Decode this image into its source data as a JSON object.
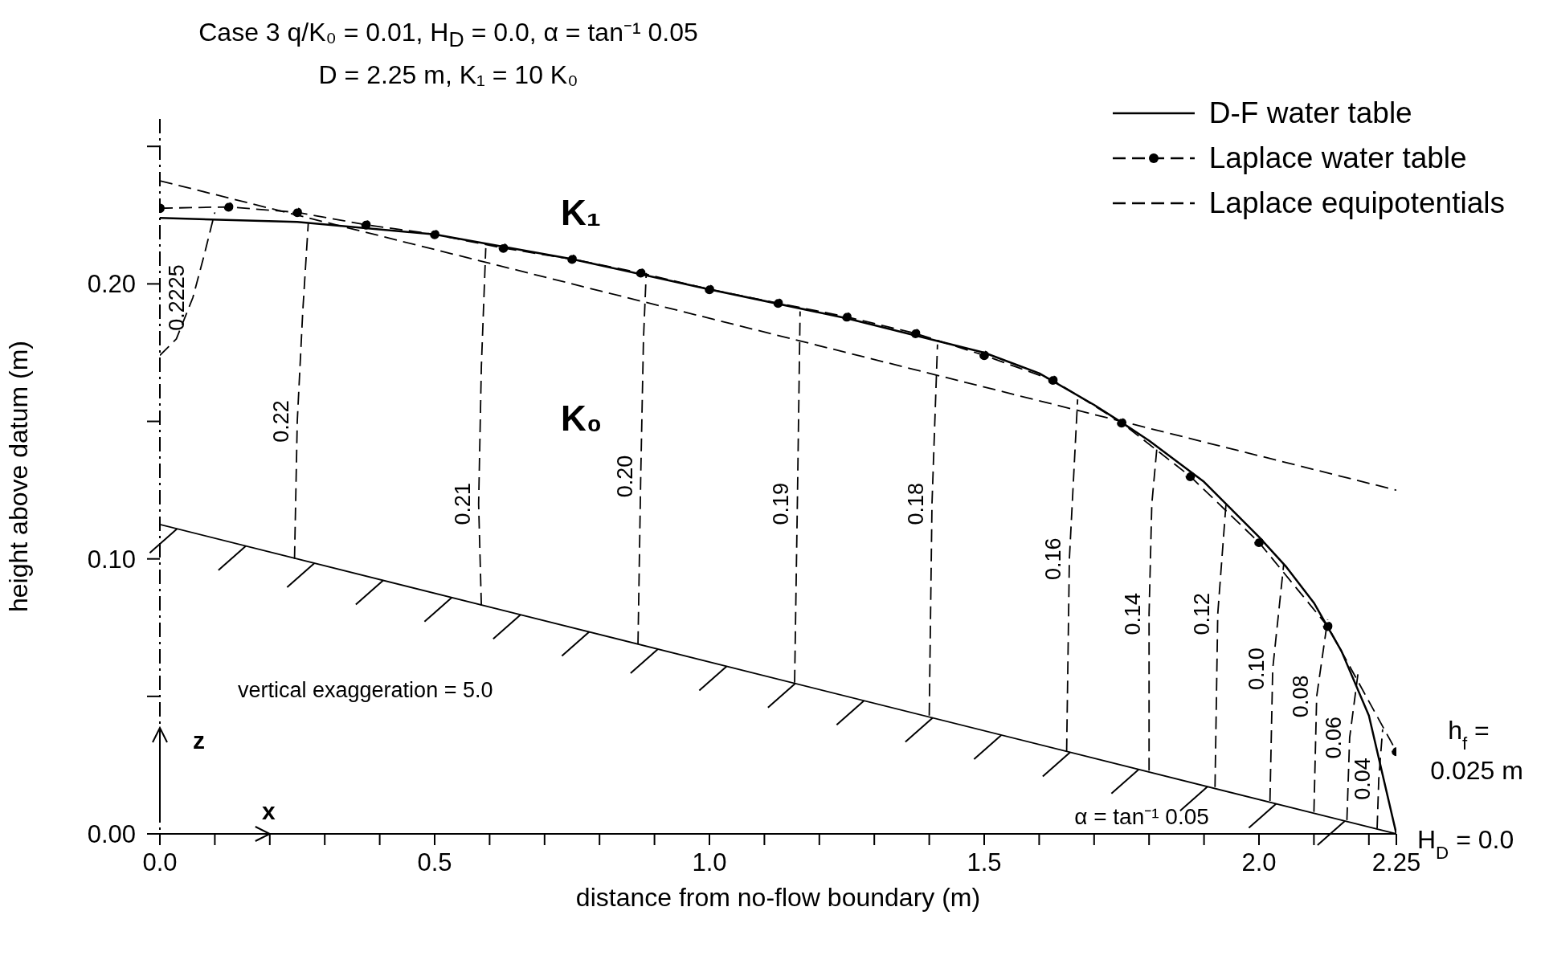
{
  "chart_data": {
    "type": "line",
    "title": "Case 3  q/K₀ = 0.01,   H$_{D}$ = 0.0,  α = tan⁻¹ 0.05",
    "subtitle": "D = 2.25 m, K₁ = 10 K₀",
    "xlabel": "distance from no-flow boundary (m)",
    "ylabel": "height above datum (m)",
    "xlim": [
      0,
      2.25
    ],
    "xticks": [
      {
        "value": 0,
        "label": "0.0"
      },
      {
        "value": 0.1,
        "label": null
      },
      {
        "value": 0.2,
        "label": null
      },
      {
        "value": 0.3,
        "label": null
      },
      {
        "value": 0.4,
        "label": null
      },
      0.5,
      {
        "value": 0.6,
        "label": null
      },
      {
        "value": 0.7,
        "label": null
      },
      {
        "value": 0.8,
        "label": null
      },
      {
        "value": 0.9,
        "label": null
      },
      {
        "value": 1,
        "label": "1.0"
      },
      {
        "value": 1.1,
        "label": null
      },
      {
        "value": 1.2,
        "label": null
      },
      {
        "value": 1.3,
        "label": null
      },
      {
        "value": 1.4,
        "label": null
      },
      1.5,
      {
        "value": 1.6,
        "label": null
      },
      {
        "value": 1.7,
        "label": null
      },
      {
        "value": 1.8,
        "label": null
      },
      {
        "value": 1.9,
        "label": null
      },
      {
        "value": 2,
        "label": "2.0"
      },
      {
        "value": 2.1,
        "label": null
      },
      {
        "value": 2.2,
        "label": null
      },
      2.25
    ],
    "ylim": [
      0,
      0.26
    ],
    "yticks": [
      {
        "value": 0,
        "label": "0.00"
      },
      {
        "value": 0.05,
        "label": null
      },
      {
        "value": 0.1,
        "label": "0.10"
      },
      {
        "value": 0.15,
        "label": null
      },
      {
        "value": 0.2,
        "label": "0.20"
      },
      {
        "value": 0.25,
        "label": null
      }
    ],
    "grid": false,
    "legend": "top right",
    "series": [
      {
        "name": "D-F water table",
        "color": "#000000",
        "line_style": "solid",
        "marker": "none",
        "x": [
          0,
          0.25,
          0.5,
          0.75,
          1.0,
          1.25,
          1.5,
          1.6,
          1.7,
          1.75,
          1.8,
          1.9,
          2.0,
          2.05,
          2.1,
          2.15,
          2.2,
          2.25
        ],
        "values": [
          0.224,
          0.2225,
          0.218,
          0.209,
          0.198,
          0.1875,
          0.175,
          0.1675,
          0.156,
          0.1496,
          0.143,
          0.128,
          0.108,
          0.097,
          0.084,
          0.0665,
          0.043,
          0
        ]
      },
      {
        "name": "Laplace water table",
        "color": "#000000",
        "line_style": "dashed",
        "marker": "circle",
        "x": [
          0,
          0.125,
          0.25,
          0.375,
          0.5,
          0.625,
          0.75,
          0.875,
          1.0,
          1.125,
          1.25,
          1.375,
          1.5,
          1.625,
          1.75,
          1.875,
          2.0,
          2.125,
          2.25
        ],
        "values": [
          0.2275,
          0.228,
          0.226,
          0.2215,
          0.218,
          0.213,
          0.209,
          0.204,
          0.198,
          0.193,
          0.188,
          0.182,
          0.174,
          0.165,
          0.1495,
          0.13,
          0.106,
          0.0755,
          0.03
        ]
      },
      {
        "name": "Laplace equipotentials",
        "color": "#000000",
        "line_style": "dashed",
        "marker": "none",
        "x": [
          0,
          0.03,
          0.06,
          0.08,
          0.1
        ],
        "values": [
          0.174,
          0.18,
          0.195,
          0.21,
          0.226
        ]
      },
      {
        "color": "#000000",
        "line_style": "dashed",
        "marker": "none",
        "x": [
          0.245,
          0.25,
          0.26,
          0.27
        ],
        "values": [
          0.1,
          0.15,
          0.19,
          0.222
        ]
      },
      {
        "color": "#000000",
        "line_style": "dashed",
        "marker": "none",
        "x": [
          0.585,
          0.58,
          0.585,
          0.593
        ],
        "values": [
          0.083,
          0.12,
          0.17,
          0.213
        ]
      },
      {
        "color": "#000000",
        "line_style": "dashed",
        "marker": "none",
        "x": [
          0.87,
          0.875,
          0.88,
          0.885
        ],
        "values": [
          0.069,
          0.13,
          0.18,
          0.204
        ]
      },
      {
        "color": "#000000",
        "line_style": "dashed",
        "marker": "none",
        "x": [
          1.155,
          1.16,
          1.165
        ],
        "values": [
          0.055,
          0.12,
          0.19
        ]
      },
      {
        "color": "#000000",
        "line_style": "dashed",
        "marker": "none",
        "x": [
          1.4,
          1.405,
          1.415
        ],
        "values": [
          0.043,
          0.12,
          0.178
        ]
      },
      {
        "color": "#000000",
        "line_style": "dashed",
        "marker": "none",
        "x": [
          1.65,
          1.655,
          1.67
        ],
        "values": [
          0.03,
          0.1,
          0.158
        ]
      },
      {
        "color": "#000000",
        "line_style": "dashed",
        "marker": "none",
        "x": [
          1.8,
          1.8,
          1.805,
          1.815
        ],
        "values": [
          0.023,
          0.08,
          0.12,
          0.142
        ]
      },
      {
        "color": "#000000",
        "line_style": "dashed",
        "marker": "none",
        "x": [
          1.92,
          1.925,
          1.94
        ],
        "values": [
          0.017,
          0.08,
          0.12
        ]
      },
      {
        "color": "#000000",
        "line_style": "dashed",
        "marker": "none",
        "x": [
          2.02,
          2.025,
          2.045
        ],
        "values": [
          0.012,
          0.06,
          0.098
        ]
      },
      {
        "color": "#000000",
        "line_style": "dashed",
        "marker": "none",
        "x": [
          2.1,
          2.105,
          2.125
        ],
        "values": [
          0.008,
          0.05,
          0.078
        ]
      },
      {
        "color": "#000000",
        "line_style": "dashed",
        "marker": "none",
        "x": [
          2.16,
          2.165,
          2.18
        ],
        "values": [
          0.005,
          0.035,
          0.058
        ]
      },
      {
        "color": "#000000",
        "line_style": "dashed",
        "marker": "none",
        "x": [
          2.215,
          2.218,
          2.225
        ],
        "values": [
          0.002,
          0.02,
          0.038
        ]
      },
      {
        "color": "#000000",
        "line_style": "dashed",
        "marker": "none",
        "x": [
          0,
          2.25
        ],
        "values": [
          0.2375,
          0.125
        ]
      },
      {
        "color": "#000000",
        "line_style": "solid",
        "marker": "none",
        "x": [
          0,
          2.25
        ],
        "values": [
          0.1125,
          0
        ]
      }
    ],
    "annotations": [
      "K₁",
      "K₀",
      "vertical exaggeration = 5.0",
      "z",
      "x",
      {
        "text": "α = tan⁻¹ 0.05",
        "x": 1.8,
        "y": 0.0225
      },
      "h$_{f}$ =",
      "0.025 m",
      "H$_{D}$ = 0.0",
      {
        "text": "0.2225",
        "x": 0.06,
        "y": 0.195
      },
      {
        "text": "0.22",
        "x": 0.25,
        "y": 0.15
      },
      {
        "text": "0.21",
        "x": 0.58,
        "y": 0.12
      },
      {
        "text": "0.20",
        "x": 0.875,
        "y": 0.13
      },
      {
        "text": "0.19",
        "x": 1.16,
        "y": 0.12
      },
      {
        "text": "0.18",
        "x": 1.405,
        "y": 0.12
      },
      {
        "text": "0.16",
        "x": 1.655,
        "y": 0.1
      },
      {
        "text": "0.14",
        "x": 1.8,
        "y": 0.08
      },
      {
        "text": "0.12",
        "x": 1.925,
        "y": 0.08
      },
      {
        "text": "0.10",
        "x": 2.025,
        "y": 0.06
      },
      {
        "text": "0.08",
        "x": 2.105,
        "y": 0.05
      },
      {
        "text": "0.06",
        "x": 2.165,
        "y": 0.035
      },
      {
        "text": "0.04",
        "x": 2.218,
        "y": 0.02
      }
    ]
  }
}
